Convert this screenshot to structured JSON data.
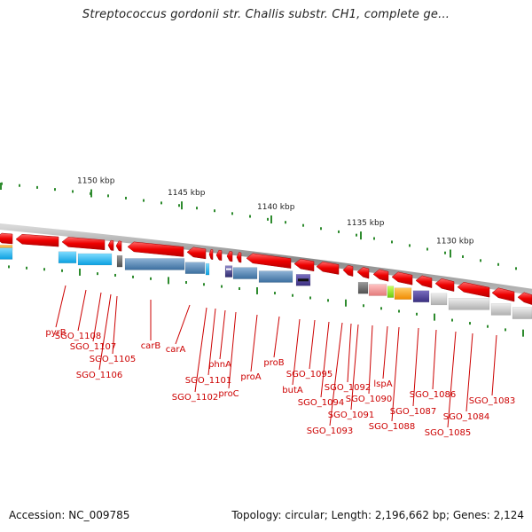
{
  "title": "Streptococcus gordonii str. Challis substr. CH1, complete ge...",
  "accession_text": "Accession: NC_009785",
  "topology_text": "Topology: circular; Length: 2,196,662 bp; Genes: 2,124",
  "ruler": {
    "labels": [
      "1150 kbp",
      "1145 kbp",
      "1140 kbp",
      "1135 kbp",
      "1130 kbp"
    ]
  },
  "genes": [
    {
      "name": "pyrB",
      "color": "#ff0000"
    },
    {
      "name": "SGO_1108",
      "color": "#ff0000"
    },
    {
      "name": "SGO_1107",
      "color": "#ff0000"
    },
    {
      "name": "SGO_1106",
      "color": "#ff0000"
    },
    {
      "name": "SGO_1105",
      "color": "#ff0000"
    },
    {
      "name": "carB",
      "color": "#ff0000"
    },
    {
      "name": "carA",
      "color": "#ff0000"
    },
    {
      "name": "SGO_1102",
      "color": "#ff0000"
    },
    {
      "name": "SGO_1101",
      "color": "#ff0000"
    },
    {
      "name": "phnA",
      "color": "#ff0000"
    },
    {
      "name": "proC",
      "color": "#ff0000"
    },
    {
      "name": "proA",
      "color": "#ff0000"
    },
    {
      "name": "proB",
      "color": "#ff0000"
    },
    {
      "name": "butA",
      "color": "#ff0000"
    },
    {
      "name": "SGO_1095",
      "color": "#ff0000"
    },
    {
      "name": "SGO_1094",
      "color": "#ff0000"
    },
    {
      "name": "SGO_1093",
      "color": "#ff0000"
    },
    {
      "name": "SGO_1092",
      "color": "#ff0000"
    },
    {
      "name": "SGO_1091",
      "color": "#ff0000"
    },
    {
      "name": "SGO_1090",
      "color": "#ff0000"
    },
    {
      "name": "lspA",
      "color": "#ff0000"
    },
    {
      "name": "SGO_1088",
      "color": "#ff0000"
    },
    {
      "name": "SGO_1087",
      "color": "#ff0000"
    },
    {
      "name": "SGO_1086",
      "color": "#ff0000"
    },
    {
      "name": "SGO_1085",
      "color": "#ff0000"
    },
    {
      "name": "SGO_1084",
      "color": "#ff0000"
    },
    {
      "name": "SGO_1083",
      "color": "#ff0000"
    }
  ],
  "colors": {
    "gene": "#ff0000",
    "label_text": "#cc0000",
    "tick": "#228b22",
    "backbone": "#8c8c8c"
  }
}
